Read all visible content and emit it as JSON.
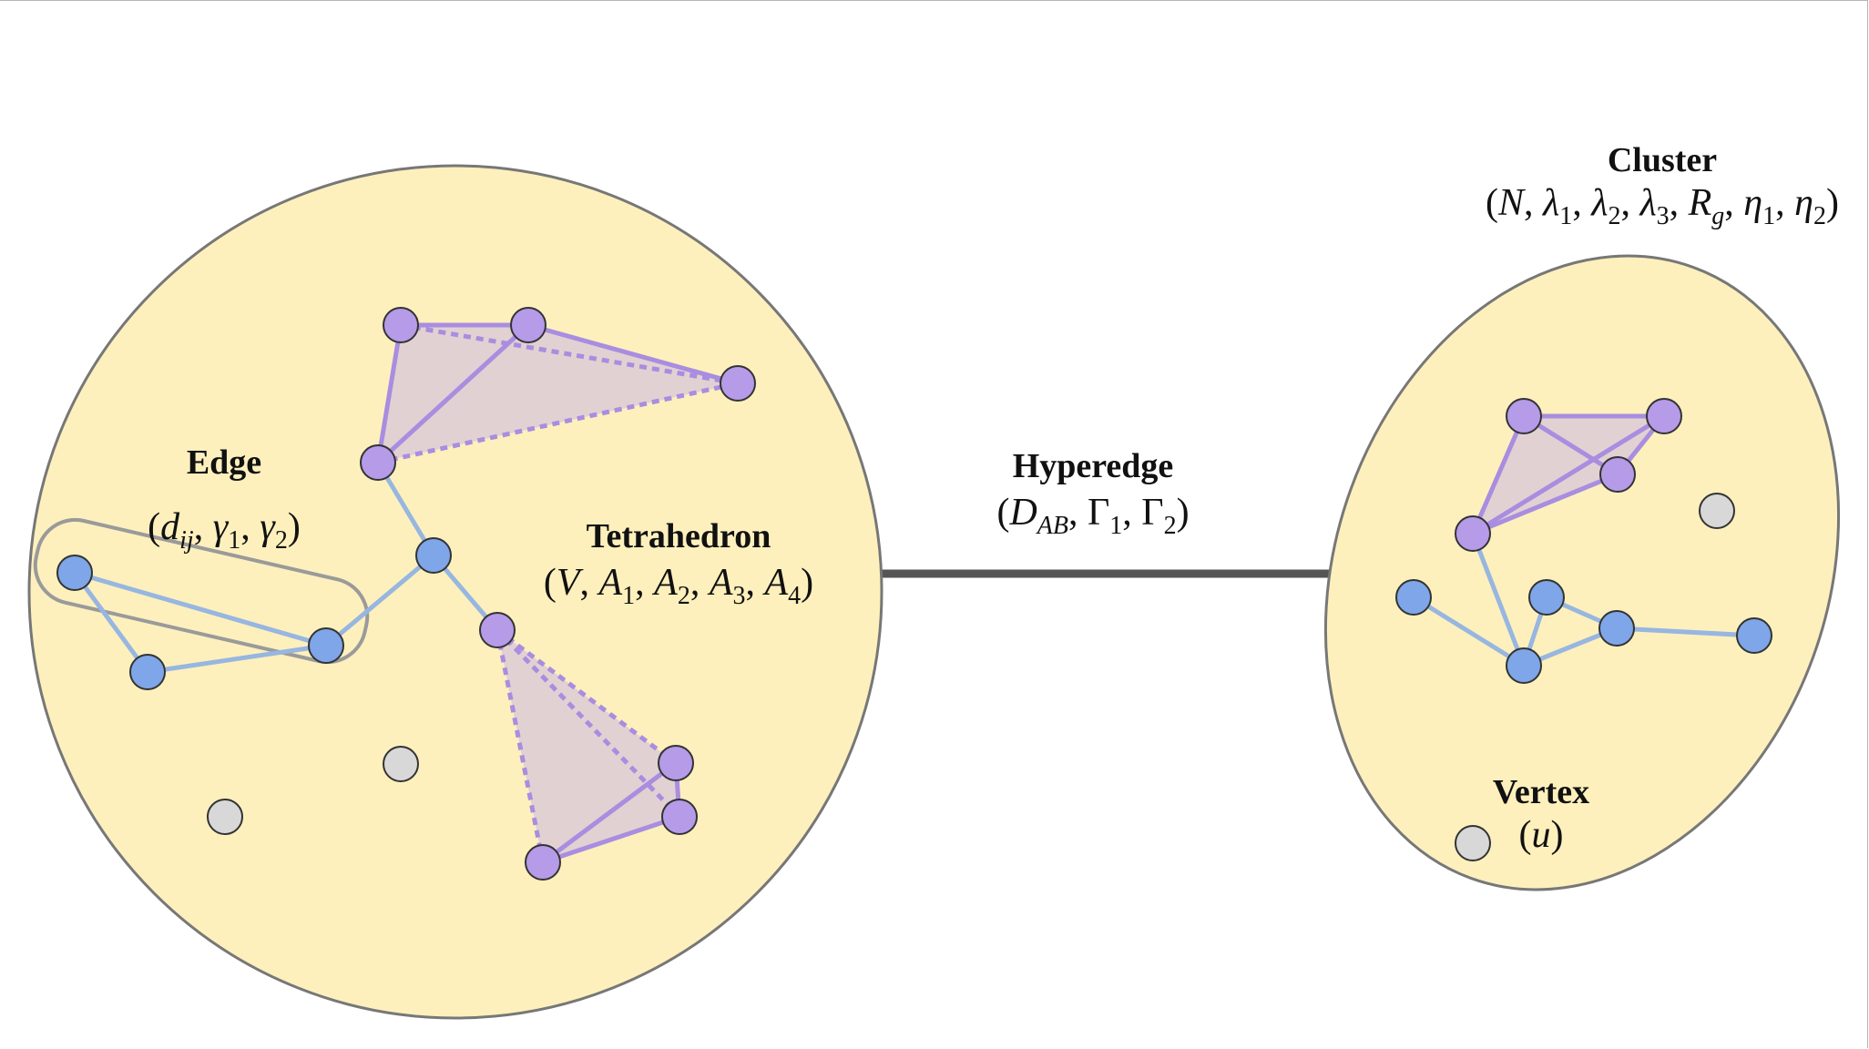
{
  "labels": {
    "edge_title": "Edge",
    "edge_features": "(d_ij, γ1, γ2)",
    "tetra_title": "Tetrahedron",
    "tetra_features": "(V, A1, A2, A3, A4)",
    "hyperedge_title": "Hyperedge",
    "hyperedge_features": "(D_AB, Γ1, Γ2)",
    "cluster_title": "Cluster",
    "cluster_features": "(N, λ1, λ2, λ3, R_g, η1, η2)",
    "vertex_title": "Vertex",
    "vertex_features": "(u)"
  },
  "math": {
    "d": "d",
    "ij": "ij",
    "gamma": "γ",
    "one": "1",
    "two": "2",
    "three": "3",
    "four": "4",
    "V": "V",
    "A": "A",
    "D": "D",
    "AB": "AB",
    "Gamma": "Γ",
    "N": "N",
    "lambda": "λ",
    "R": "R",
    "g": "g",
    "eta": "η",
    "u": "u",
    "open": "(",
    "close": ")",
    "comma": ", "
  },
  "colors": {
    "cluster_fill": "#fdf0bd",
    "cluster_outline": "#777777",
    "edge_vertex": "#7ea6e8",
    "tetra_vertex": "#b69be8",
    "isolated_vertex": "#d8d8d8",
    "edge_line": "#97b6e0",
    "tetra_line": "#a98de0",
    "tetra_fill": "#dccbd6",
    "hyperedge_line": "#555555"
  }
}
